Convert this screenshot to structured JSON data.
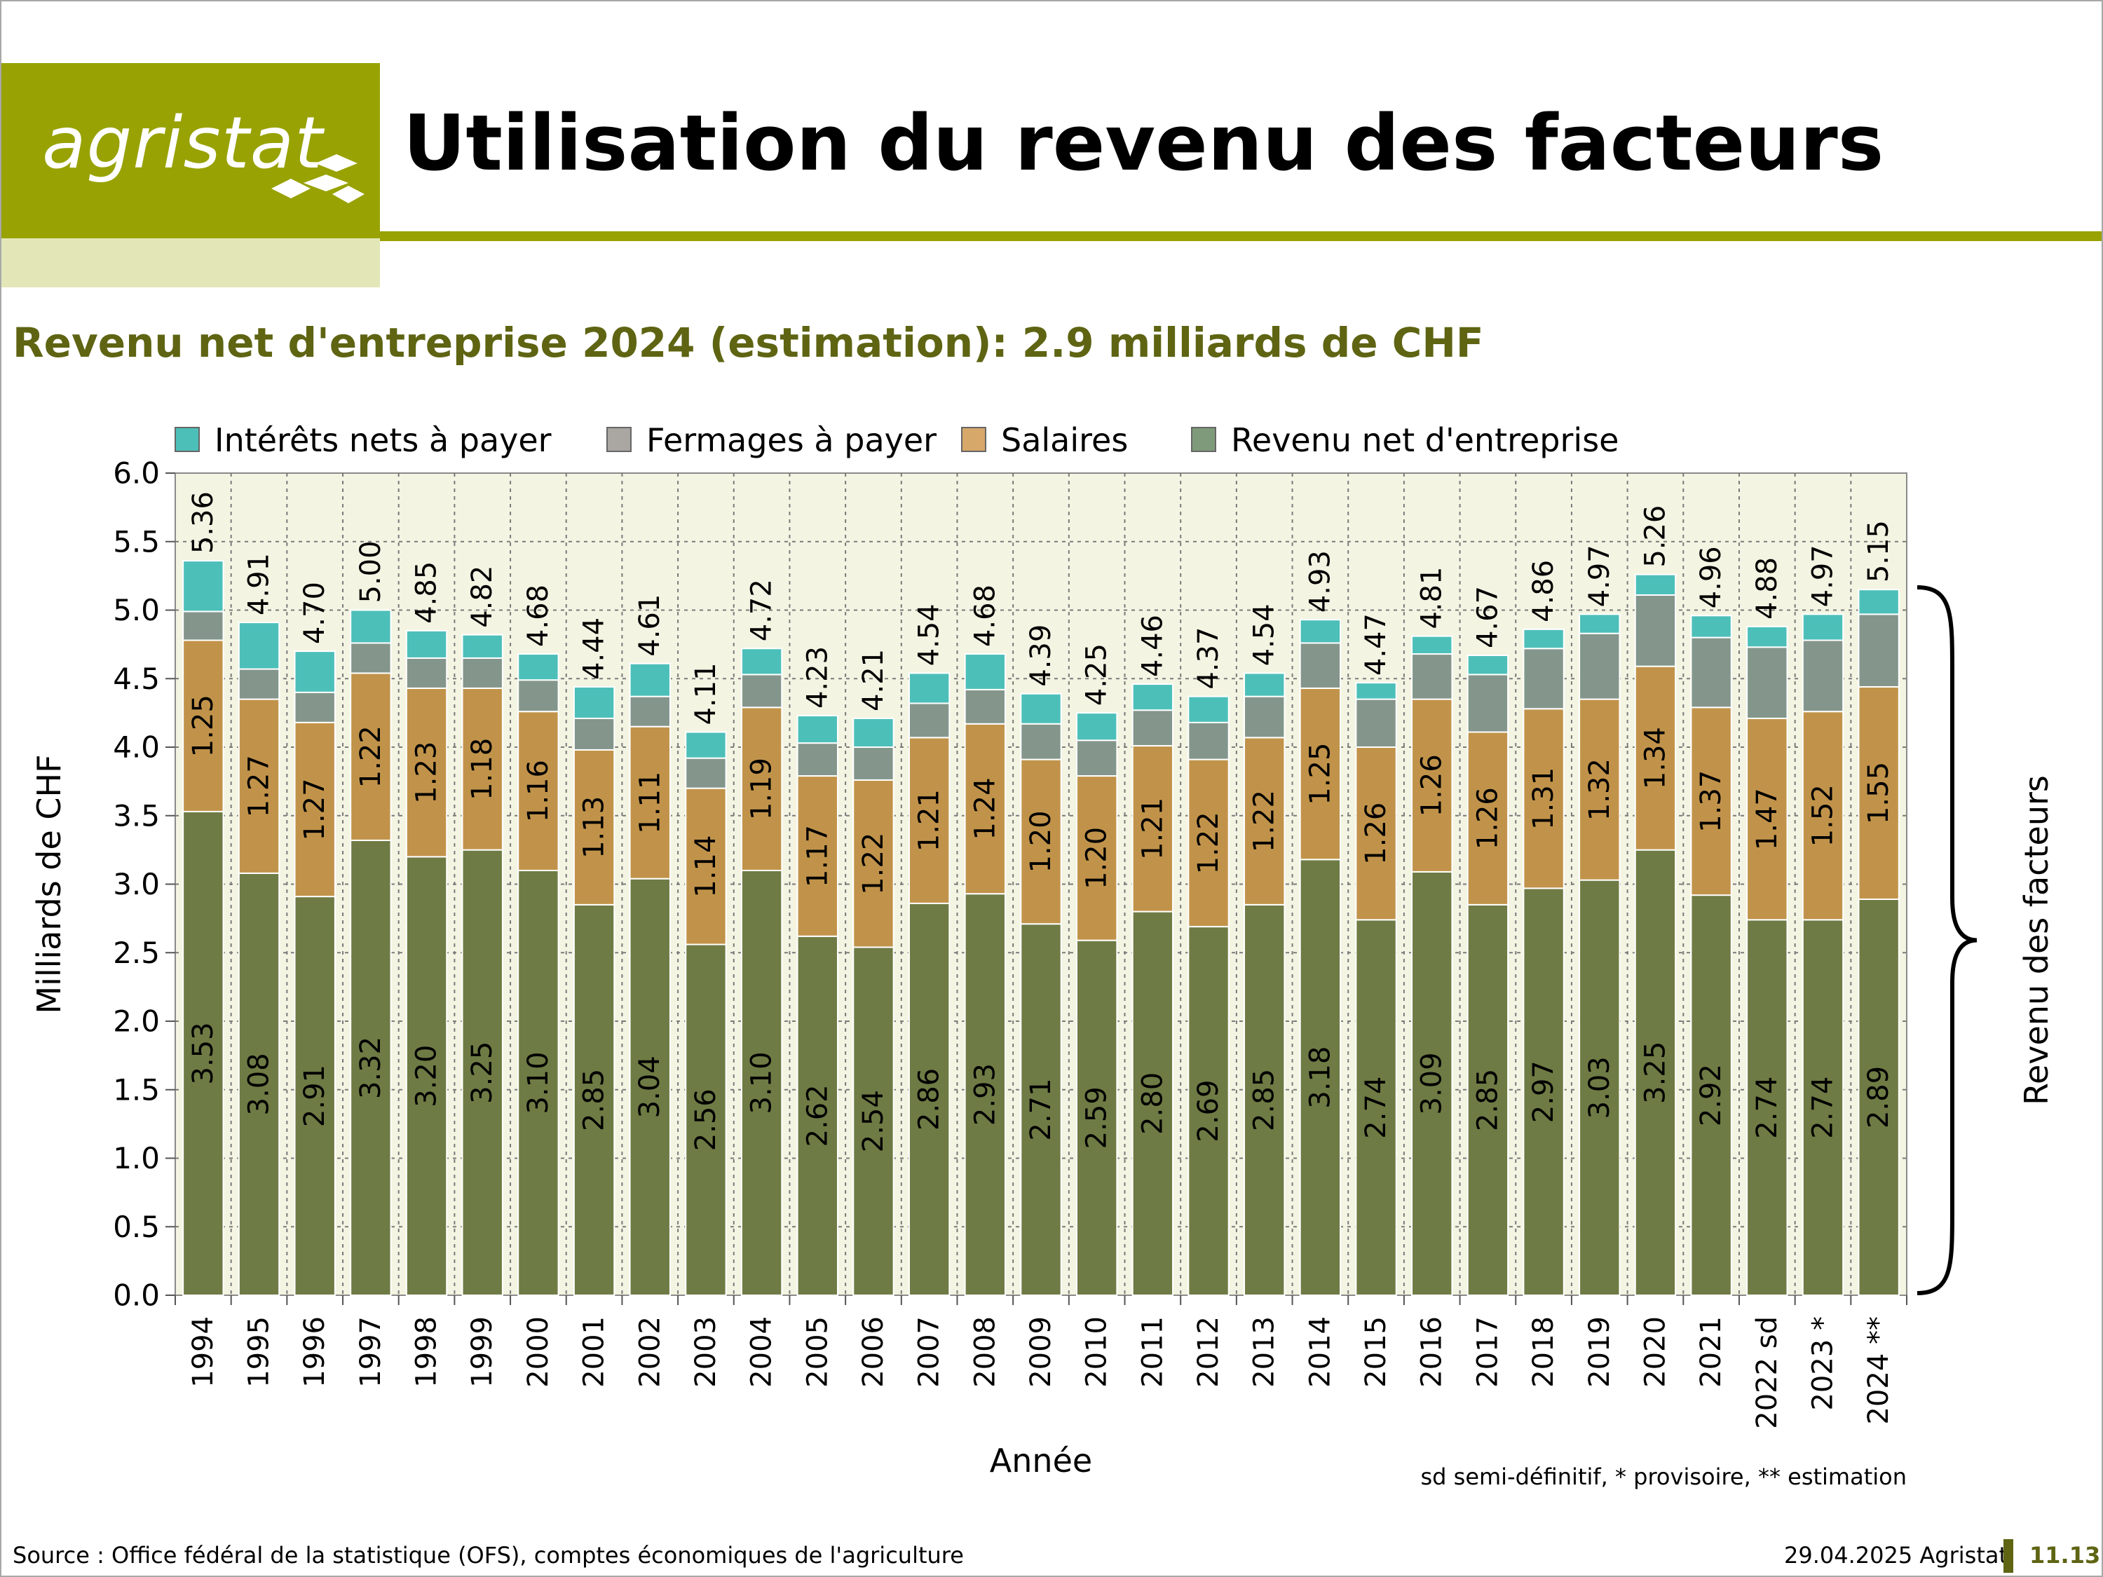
{
  "header": {
    "logo_text": "agristat",
    "title": "Utilisation du revenu des facteurs"
  },
  "subtitle": "Revenu net d'entreprise 2024 (estimation): 2.9 milliards de CHF",
  "chart_data": {
    "type": "bar",
    "stacked": true,
    "categories": [
      "1994",
      "1995",
      "1996",
      "1997",
      "1998",
      "1999",
      "2000",
      "2001",
      "2002",
      "2003",
      "2004",
      "2005",
      "2006",
      "2007",
      "2008",
      "2009",
      "2010",
      "2011",
      "2012",
      "2013",
      "2014",
      "2015",
      "2016",
      "2017",
      "2018",
      "2019",
      "2020",
      "2021",
      "2022 sd",
      "2023 *",
      "2024 **"
    ],
    "series": [
      {
        "name": "Revenu net d'entreprise",
        "color": "#6e7b44",
        "values": [
          3.53,
          3.08,
          2.91,
          3.32,
          3.2,
          3.25,
          3.1,
          2.85,
          3.04,
          2.56,
          3.1,
          2.62,
          2.54,
          2.86,
          2.93,
          2.71,
          2.59,
          2.8,
          2.69,
          2.85,
          3.18,
          2.74,
          3.09,
          2.85,
          2.97,
          3.03,
          3.25,
          2.92,
          2.74,
          2.74,
          2.89
        ]
      },
      {
        "name": "Salaires",
        "color": "#c1934a",
        "values": [
          1.25,
          1.27,
          1.27,
          1.22,
          1.23,
          1.18,
          1.16,
          1.13,
          1.11,
          1.14,
          1.19,
          1.17,
          1.22,
          1.21,
          1.24,
          1.2,
          1.2,
          1.21,
          1.22,
          1.22,
          1.25,
          1.26,
          1.26,
          1.26,
          1.31,
          1.32,
          1.34,
          1.37,
          1.47,
          1.52,
          1.55
        ]
      },
      {
        "name": "Fermages à payer",
        "color": "#84968b",
        "values": [
          0.21,
          0.22,
          0.22,
          0.22,
          0.22,
          0.22,
          0.23,
          0.23,
          0.22,
          0.22,
          0.24,
          0.24,
          0.24,
          0.25,
          0.25,
          0.26,
          0.26,
          0.26,
          0.27,
          0.3,
          0.33,
          0.35,
          0.33,
          0.42,
          0.44,
          0.48,
          0.52,
          0.51,
          0.52,
          0.52,
          0.53
        ]
      },
      {
        "name": "Intérêts nets à payer",
        "color": "#4dbfb9",
        "values": [
          0.37,
          0.34,
          0.3,
          0.24,
          0.2,
          0.17,
          0.19,
          0.23,
          0.24,
          0.19,
          0.19,
          0.2,
          0.21,
          0.22,
          0.26,
          0.22,
          0.2,
          0.19,
          0.19,
          0.17,
          0.17,
          0.12,
          0.13,
          0.14,
          0.14,
          0.14,
          0.15,
          0.16,
          0.15,
          0.19,
          0.18
        ]
      }
    ],
    "totals": [
      "5.36",
      "4.91",
      "4.70",
      "5.00",
      "4.85",
      "4.82",
      "4.68",
      "4.44",
      "4.61",
      "4.11",
      "4.72",
      "4.23",
      "4.21",
      "4.54",
      "4.68",
      "4.39",
      "4.25",
      "4.46",
      "4.37",
      "4.54",
      "4.93",
      "4.47",
      "4.81",
      "4.67",
      "4.86",
      "4.97",
      "5.26",
      "4.96",
      "4.88",
      "4.97",
      "5.15"
    ],
    "revenu_labels": [
      "3.53",
      "3.08",
      "2.91",
      "3.32",
      "3.20",
      "3.25",
      "3.10",
      "2.85",
      "3.04",
      "2.56",
      "3.10",
      "2.62",
      "2.54",
      "2.86",
      "2.93",
      "2.71",
      "2.59",
      "2.80",
      "2.69",
      "2.85",
      "3.18",
      "2.74",
      "3.09",
      "2.85",
      "2.97",
      "3.03",
      "3.25",
      "2.92",
      "2.74",
      "2.74",
      "2.89"
    ],
    "salaires_labels": [
      "1.25",
      "1.27",
      "1.27",
      "1.22",
      "1.23",
      "1.18",
      "1.16",
      "1.13",
      "1.11",
      "1.14",
      "1.19",
      "1.17",
      "1.22",
      "1.21",
      "1.24",
      "1.20",
      "1.20",
      "1.21",
      "1.22",
      "1.22",
      "1.25",
      "1.26",
      "1.26",
      "1.26",
      "1.31",
      "1.32",
      "1.34",
      "1.37",
      "1.47",
      "1.52",
      "1.55"
    ],
    "legend_order": [
      "Intérêts nets à payer",
      "Fermages à payer",
      "Salaires",
      "Revenu net d'entreprise"
    ],
    "legend_colors": [
      "#4dbfb9",
      "#aaa7a3",
      "#d6a86a",
      "#7f9a7a"
    ],
    "legend_position": "top",
    "ylabel": "Milliards de CHF",
    "xlabel": "Année",
    "ylim": [
      0,
      6
    ],
    "yticks": [
      "0.0",
      "0.5",
      "1.0",
      "1.5",
      "2.0",
      "2.5",
      "3.0",
      "3.5",
      "4.0",
      "4.5",
      "5.0",
      "5.5",
      "6.0"
    ],
    "grid": true,
    "plot_background": "#f4f4e3",
    "brace_label": "Revenu des facteurs",
    "note": "sd semi-définitif, * provisoire, ** estimation"
  },
  "footer": {
    "source": "Source : Office fédéral de la statistique (OFS), comptes économiques de l'agriculture",
    "date": "29.04.2025 Agristat",
    "page": "11.13"
  }
}
